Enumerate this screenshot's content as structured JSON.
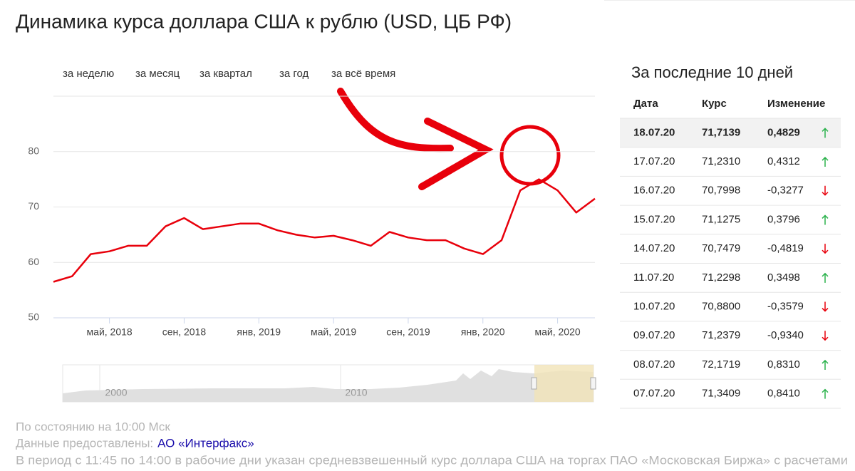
{
  "header": {
    "title": "Динамика курса доллара США к рублю (USD, ЦБ РФ)"
  },
  "tabs": [
    "за неделю",
    "за месяц",
    "за квартал",
    "за год",
    "за всё время"
  ],
  "chart_data": {
    "type": "line",
    "x": [
      "2018-02",
      "2018-03",
      "2018-04",
      "2018-05",
      "2018-06",
      "2018-07",
      "2018-08",
      "2018-09",
      "2018-10",
      "2018-11",
      "2018-12",
      "2019-01",
      "2019-02",
      "2019-03",
      "2019-04",
      "2019-05",
      "2019-06",
      "2019-07",
      "2019-08",
      "2019-09",
      "2019-10",
      "2019-11",
      "2019-12",
      "2020-01",
      "2020-02",
      "2020-03",
      "2020-04",
      "2020-05",
      "2020-06",
      "2020-07"
    ],
    "values": [
      56.5,
      57.5,
      61.5,
      62,
      63,
      63,
      66.5,
      68,
      66,
      66.5,
      67,
      67,
      65.8,
      65,
      64.5,
      64.8,
      64,
      63,
      65.5,
      64.5,
      64,
      64,
      62.5,
      61.5,
      64,
      73,
      75,
      73,
      69,
      71.5
    ],
    "color": "#e8000b",
    "xlim": [
      "2018-02",
      "2020-07"
    ],
    "xticks": [
      {
        "value": "2018-05",
        "label": "май, 2018"
      },
      {
        "value": "2018-09",
        "label": "сен, 2018"
      },
      {
        "value": "2019-01",
        "label": "янв, 2019"
      },
      {
        "value": "2019-05",
        "label": "май, 2019"
      },
      {
        "value": "2019-09",
        "label": "сен, 2019"
      },
      {
        "value": "2020-01",
        "label": "янв, 2020"
      },
      {
        "value": "2020-05",
        "label": "май, 2020"
      }
    ],
    "ylim": [
      50,
      90
    ],
    "yticks": [
      50,
      60,
      70,
      80
    ],
    "grid": true
  },
  "navigator": {
    "labels": [
      "2000",
      "2010"
    ]
  },
  "table": {
    "title": "За последние 10 дней",
    "columns": [
      "Дата",
      "Курс",
      "Изменение"
    ],
    "rows": [
      [
        "18.07.20",
        "71,7139",
        "0,4829"
      ],
      [
        "17.07.20",
        "71,2310",
        "0,4312"
      ],
      [
        "16.07.20",
        "70,7998",
        "-0,3277"
      ],
      [
        "15.07.20",
        "71,1275",
        "0,3796"
      ],
      [
        "14.07.20",
        "70,7479",
        "-0,4819"
      ],
      [
        "11.07.20",
        "71,2298",
        "0,3498"
      ],
      [
        "10.07.20",
        "70,8800",
        "-0,3579"
      ],
      [
        "09.07.20",
        "71,2379",
        "-0,9340"
      ],
      [
        "08.07.20",
        "72,1719",
        "0,8310"
      ],
      [
        "07.07.20",
        "71,3409",
        "0,8410"
      ]
    ]
  },
  "footer": {
    "status": "По состоянию на 10:00 Мск",
    "source_label": "Данные предоставлены:",
    "source_link": "АО «Интерфакс»",
    "note": "В период с 11:45 по 14:00 в рабочие дни указан средневзвешенный курс доллара США на торгах ПАО «Московская Биржа» с расчетами"
  }
}
